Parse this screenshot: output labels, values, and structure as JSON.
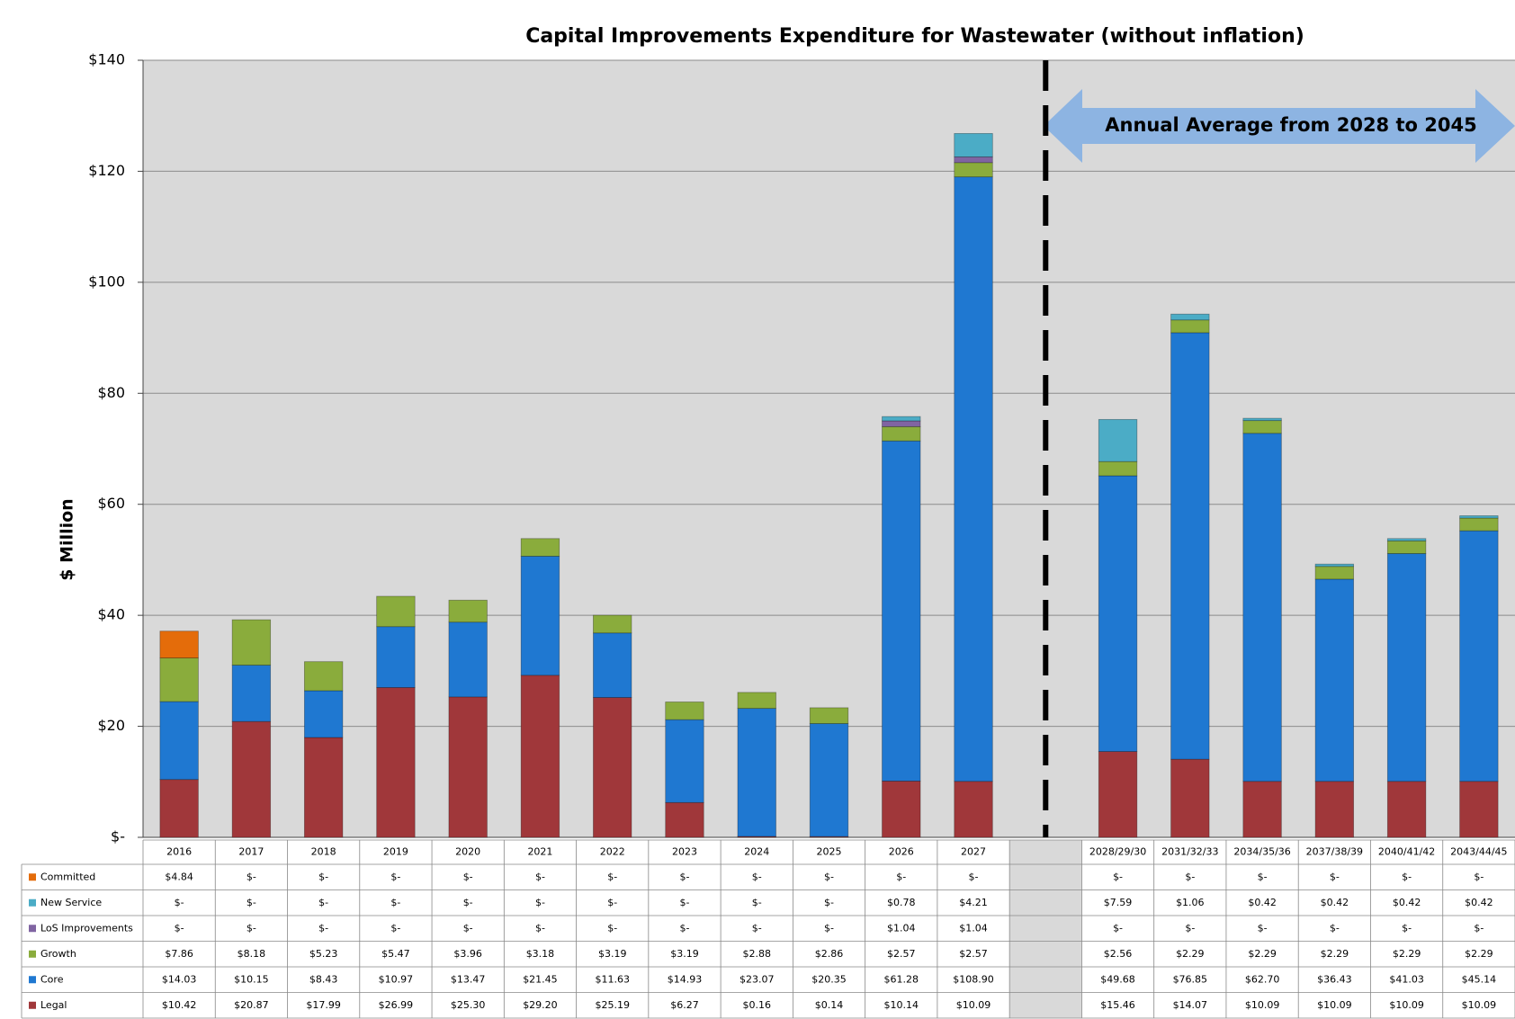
{
  "chart_data": {
    "type": "stacked_bar",
    "title": "Capital  Improvements Expenditure for Wastewater (without inflation)",
    "ylabel": "$ Million",
    "annotation": "Annual Average from 2028 to 2045",
    "categories": [
      "2016",
      "2017",
      "2018",
      "2019",
      "2020",
      "2021",
      "2022",
      "2023",
      "2024",
      "2025",
      "2026",
      "2027",
      null,
      "2028/29/30",
      "2031/32/33",
      "2034/35/36",
      "2037/38/39",
      "2040/41/42",
      "2043/44/45"
    ],
    "ylim": [
      0,
      140
    ],
    "yticks": [
      {
        "value": 0,
        "label": "$-"
      },
      {
        "value": 20,
        "label": "$20"
      },
      {
        "value": 40,
        "label": "$40"
      },
      {
        "value": 60,
        "label": "$60"
      },
      {
        "value": 80,
        "label": "$80"
      },
      {
        "value": 100,
        "label": "$100"
      },
      {
        "value": 120,
        "label": "$120"
      },
      {
        "value": 140,
        "label": "$140"
      }
    ],
    "grid": true,
    "series": [
      {
        "name": "Committed",
        "color": "#e46c0a",
        "values": [
          4.84,
          0,
          0,
          0,
          0,
          0,
          0,
          0,
          0,
          0,
          0,
          0,
          null,
          0,
          0,
          0,
          0,
          0,
          0
        ],
        "value_labels": [
          "$4.84",
          "$-",
          "$-",
          "$-",
          "$-",
          "$-",
          "$-",
          "$-",
          "$-",
          "$-",
          "$-",
          "$-",
          null,
          "$-",
          "$-",
          "$-",
          "$-",
          "$-",
          "$-"
        ]
      },
      {
        "name": "New Service",
        "color": "#4bacc6",
        "values": [
          0,
          0,
          0,
          0,
          0,
          0,
          0,
          0,
          0,
          0,
          0.78,
          4.21,
          null,
          7.59,
          1.06,
          0.42,
          0.42,
          0.42,
          0.42
        ],
        "value_labels": [
          "$-",
          "$-",
          "$-",
          "$-",
          "$-",
          "$-",
          "$-",
          "$-",
          "$-",
          "$-",
          "$0.78",
          "$4.21",
          null,
          "$7.59",
          "$1.06",
          "$0.42",
          "$0.42",
          "$0.42",
          "$0.42"
        ]
      },
      {
        "name": "LoS Improvements",
        "color": "#8064a2",
        "values": [
          0,
          0,
          0,
          0,
          0,
          0,
          0,
          0,
          0,
          0,
          1.04,
          1.04,
          null,
          0,
          0,
          0,
          0,
          0,
          0
        ],
        "value_labels": [
          "$-",
          "$-",
          "$-",
          "$-",
          "$-",
          "$-",
          "$-",
          "$-",
          "$-",
          "$-",
          "$1.04",
          "$1.04",
          null,
          "$-",
          "$-",
          "$-",
          "$-",
          "$-",
          "$-"
        ]
      },
      {
        "name": "Growth",
        "color": "#8aac3c",
        "values": [
          7.86,
          8.18,
          5.23,
          5.47,
          3.96,
          3.18,
          3.19,
          3.19,
          2.88,
          2.86,
          2.57,
          2.57,
          null,
          2.56,
          2.29,
          2.29,
          2.29,
          2.29,
          2.29
        ],
        "value_labels": [
          "$7.86",
          "$8.18",
          "$5.23",
          "$5.47",
          "$3.96",
          "$3.18",
          "$3.19",
          "$3.19",
          "$2.88",
          "$2.86",
          "$2.57",
          "$2.57",
          null,
          "$2.56",
          "$2.29",
          "$2.29",
          "$2.29",
          "$2.29",
          "$2.29"
        ]
      },
      {
        "name": "Core",
        "color": "#1f78d1",
        "values": [
          14.03,
          10.15,
          8.43,
          10.97,
          13.47,
          21.45,
          11.63,
          14.93,
          23.07,
          20.35,
          61.28,
          108.9,
          null,
          49.68,
          76.85,
          62.7,
          36.43,
          41.03,
          45.14
        ],
        "value_labels": [
          "$14.03",
          "$10.15",
          "$8.43",
          "$10.97",
          "$13.47",
          "$21.45",
          "$11.63",
          "$14.93",
          "$23.07",
          "$20.35",
          "$61.28",
          "$108.90",
          null,
          "$49.68",
          "$76.85",
          "$62.70",
          "$36.43",
          "$41.03",
          "$45.14"
        ]
      },
      {
        "name": "Legal",
        "color": "#a0373a",
        "values": [
          10.42,
          20.87,
          17.99,
          26.99,
          25.3,
          29.2,
          25.19,
          6.27,
          0.16,
          0.14,
          10.14,
          10.09,
          null,
          15.46,
          14.07,
          10.09,
          10.09,
          10.09,
          10.09
        ],
        "value_labels": [
          "$10.42",
          "$20.87",
          "$17.99",
          "$26.99",
          "$25.30",
          "$29.20",
          "$25.19",
          "$6.27",
          "$0.16",
          "$0.14",
          "$10.14",
          "$10.09",
          null,
          "$15.46",
          "$14.07",
          "$10.09",
          "$10.09",
          "$10.09",
          "$10.09"
        ]
      }
    ]
  }
}
